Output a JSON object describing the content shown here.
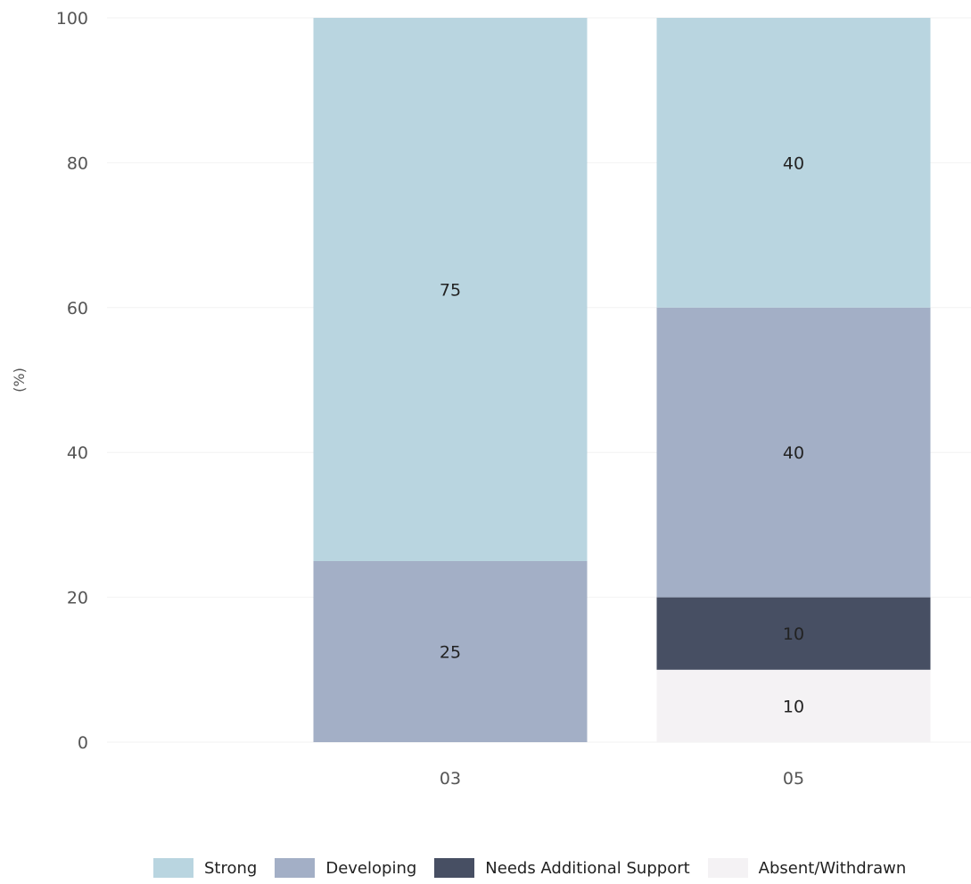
{
  "chart_data": {
    "type": "bar",
    "stacked": true,
    "title": "",
    "xlabel": "",
    "ylabel": "(%)",
    "ylim": [
      0,
      100
    ],
    "yticks": [
      0,
      20,
      40,
      60,
      80,
      100
    ],
    "categories": [
      "03",
      "05"
    ],
    "series": [
      {
        "name": "Absent/Withdrawn",
        "color": "#f4f2f4",
        "values": [
          0,
          10
        ]
      },
      {
        "name": "Needs Additional Support",
        "color": "#474f63",
        "values": [
          0,
          10
        ]
      },
      {
        "name": "Developing",
        "color": "#a3afc6",
        "values": [
          25,
          40
        ]
      },
      {
        "name": "Strong",
        "color": "#b9d5e0",
        "values": [
          75,
          40
        ]
      }
    ],
    "legend": {
      "position": "bottom",
      "order": [
        "Strong",
        "Developing",
        "Needs Additional Support",
        "Absent/Withdrawn"
      ]
    },
    "grid": true
  }
}
